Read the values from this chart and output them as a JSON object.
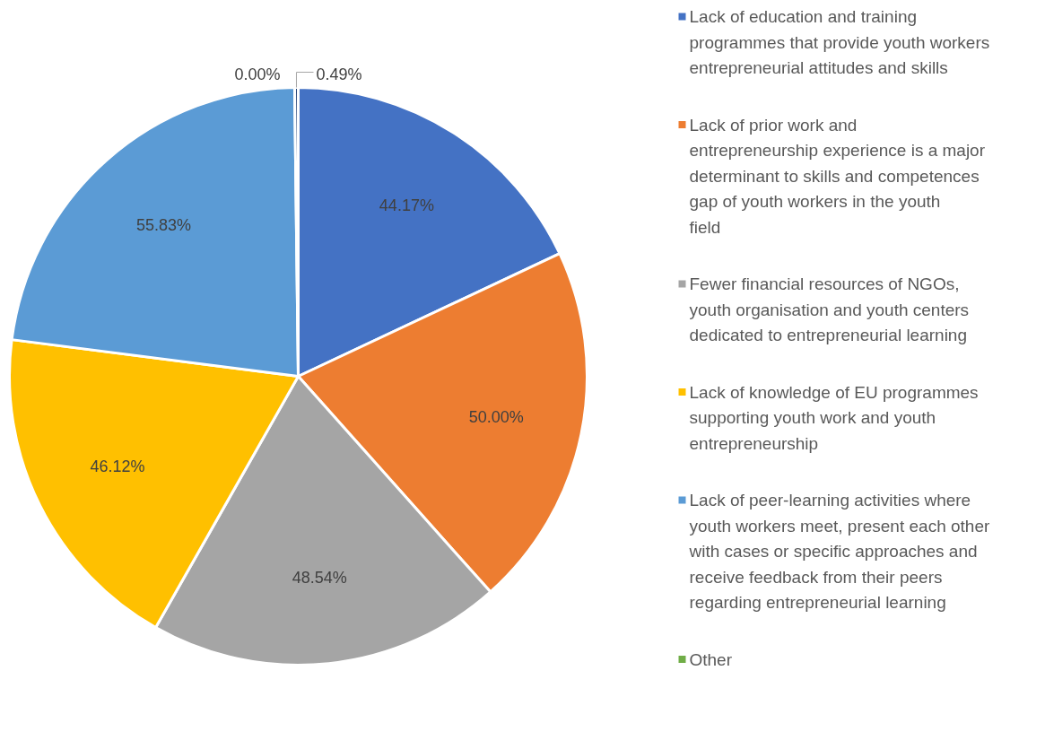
{
  "chart_data": {
    "type": "pie",
    "categories": [
      "Lack of education and training programmes that provide youth workers entrepreneurial attitudes and skills",
      "Lack of prior work and entrepreneurship experience is a major determinant to skills and competences gap of youth workers in the youth field",
      "Fewer financial resources of NGOs, youth organisation and youth centers dedicated to entrepreneurial learning",
      "Lack of knowledge of EU programmes supporting youth work and youth entrepreneurship",
      "Lack of peer-learning activities where youth workers meet, present each other with cases or specific approaches and receive feedback from their peers regarding entrepreneurial learning",
      "Other",
      null
    ],
    "values": [
      44.17,
      50.0,
      48.54,
      46.12,
      55.83,
      0.0,
      0.49
    ],
    "colors": [
      "#4472c4",
      "#ed7d31",
      "#a5a5a5",
      "#ffc000",
      "#5b9bd5",
      "#70ad47",
      "#264478"
    ],
    "value_labels": [
      "44.17%",
      "50.00%",
      "48.54%",
      "46.12%",
      "55.83%",
      "0.00%",
      "0.49%"
    ],
    "legend": "right"
  }
}
